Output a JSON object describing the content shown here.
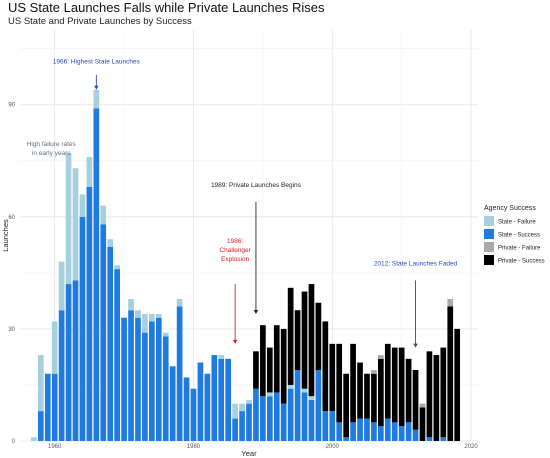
{
  "chart_data": {
    "type": "bar",
    "stacked": true,
    "title": "US State Launches Falls while Private Launches Rises",
    "subtitle": "US State and Private Launches by Success",
    "xlabel": "Year",
    "ylabel": "Launches",
    "xlim": [
      1955,
      2021
    ],
    "ylim": [
      0,
      110
    ],
    "x_ticks": [
      1960,
      1980,
      2000,
      2020
    ],
    "y_ticks": [
      0,
      30,
      60,
      90
    ],
    "grid": true,
    "legend": {
      "title": "Agency Success",
      "position": "right",
      "entries": [
        "State - Failure",
        "State - Success",
        "Private - Failure",
        "Private - Success"
      ]
    },
    "colors": {
      "state_failure": "#a6d0dd",
      "state_success": "#1f7be0",
      "private_failure": "#aaaaaa",
      "private_success": "#000000"
    },
    "years": [
      1957,
      1958,
      1959,
      1960,
      1961,
      1962,
      1963,
      1964,
      1965,
      1966,
      1967,
      1968,
      1969,
      1970,
      1971,
      1972,
      1973,
      1974,
      1975,
      1976,
      1977,
      1978,
      1979,
      1980,
      1981,
      1982,
      1983,
      1984,
      1985,
      1986,
      1987,
      1988,
      1989,
      1990,
      1991,
      1992,
      1993,
      1994,
      1995,
      1996,
      1997,
      1998,
      1999,
      2000,
      2001,
      2002,
      2003,
      2004,
      2005,
      2006,
      2007,
      2008,
      2009,
      2010,
      2011,
      2012,
      2013,
      2014,
      2015,
      2016,
      2017,
      2018
    ],
    "series": [
      {
        "name": "State - Success",
        "values": [
          0,
          8,
          18,
          18,
          35,
          42,
          43,
          60,
          68,
          89,
          58,
          52,
          46,
          33,
          35,
          33,
          29,
          32,
          33,
          28,
          20,
          36,
          17,
          14,
          21,
          18,
          23,
          22,
          22,
          6,
          8,
          10,
          14,
          12,
          12,
          13,
          10,
          14,
          19,
          13,
          11,
          19,
          8,
          8,
          5,
          1,
          5,
          6,
          6,
          5,
          4,
          6,
          5,
          4,
          5,
          3,
          0,
          1,
          0,
          1,
          0,
          0
        ]
      },
      {
        "name": "State - Failure",
        "values": [
          1,
          15,
          0,
          14,
          13,
          35,
          30,
          6,
          8,
          5,
          5,
          2,
          1,
          0,
          3,
          2,
          5,
          2,
          1,
          1,
          0,
          2,
          0,
          0,
          0,
          0,
          0,
          1,
          0,
          4,
          2,
          1,
          0,
          0,
          1,
          0,
          0,
          1,
          0,
          1,
          1,
          0,
          0,
          0,
          0,
          0,
          0,
          0,
          0,
          0,
          0,
          0,
          0,
          0,
          0,
          0,
          0,
          0,
          0,
          0,
          0,
          0
        ]
      },
      {
        "name": "Private - Success",
        "values": [
          0,
          0,
          0,
          0,
          0,
          0,
          0,
          0,
          0,
          0,
          0,
          0,
          0,
          0,
          0,
          0,
          0,
          0,
          0,
          0,
          0,
          0,
          0,
          0,
          0,
          0,
          0,
          0,
          0,
          0,
          0,
          0,
          10,
          19,
          12,
          18,
          20,
          26,
          16,
          26,
          30,
          18,
          24,
          18,
          21,
          17,
          21,
          15,
          12,
          13,
          18,
          20,
          20,
          21,
          17,
          16,
          9,
          23,
          23,
          24,
          36,
          30
        ]
      },
      {
        "name": "Private - Failure",
        "values": [
          0,
          0,
          0,
          0,
          0,
          0,
          0,
          0,
          0,
          0,
          0,
          0,
          0,
          0,
          0,
          0,
          0,
          0,
          0,
          0,
          0,
          0,
          0,
          0,
          0,
          0,
          0,
          0,
          0,
          0,
          0,
          0,
          0,
          0,
          0,
          0,
          0,
          0,
          0,
          0,
          0,
          0,
          0,
          0,
          0,
          0,
          0,
          0,
          0,
          1,
          1,
          0,
          0,
          0,
          0,
          0,
          1,
          0,
          0,
          0,
          2,
          0
        ]
      }
    ],
    "annotations": [
      {
        "text": "1966: Highest State Launches",
        "color": "#2a45b8",
        "x": 1966,
        "y_text": 101,
        "y_arrow_from": 98,
        "y_arrow_to": 94
      },
      {
        "text": "High failure rates in early years",
        "color": "#607080",
        "x": 1959.5,
        "y_text": 79
      },
      {
        "text": "1989: Private Launches Begins",
        "color": "#222222",
        "x": 1989,
        "y_text": 68,
        "y_arrow_from": 64,
        "y_arrow_to": 34
      },
      {
        "text": "1986: Challenger Explosion",
        "color": "#d42020",
        "x": 1986,
        "y_text": 53,
        "y_arrow_from": 42,
        "y_arrow_to": 26
      },
      {
        "text": "2012: State Launches Faded",
        "color": "#2a45b8",
        "x": 2012,
        "y_text": 47,
        "y_arrow_from": 43,
        "y_arrow_to": 25
      }
    ]
  }
}
